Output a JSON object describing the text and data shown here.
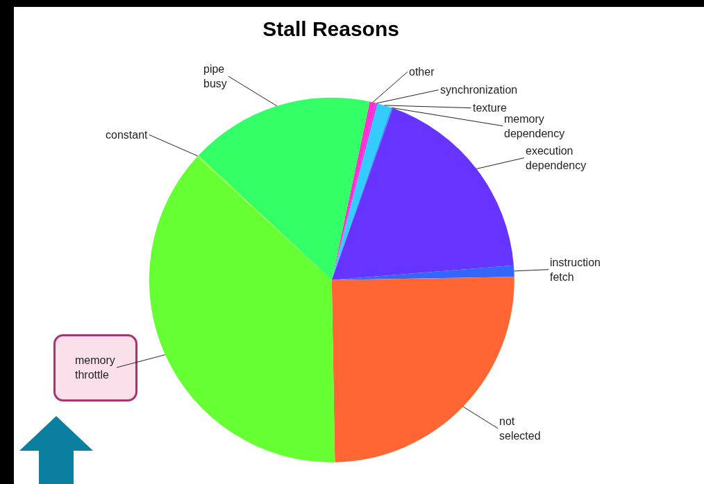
{
  "chart_data": {
    "type": "pie",
    "title": "Stall Reasons",
    "categories": [
      "other",
      "synchronization",
      "texture",
      "memory dependency",
      "execution dependency",
      "instruction fetch",
      "not selected",
      "memory throttle",
      "constant",
      "pipe busy"
    ],
    "values": [
      0.56,
      0.14,
      1.25,
      0.14,
      18.3,
      1.0,
      25.0,
      37.1,
      0.14,
      16.37
    ],
    "colors": [
      "#ff33cc",
      "#cc33ff",
      "#33ccff",
      "#3399ff",
      "#6633ff",
      "#3366ff",
      "#ff6633",
      "#66ff33",
      "#99ff33",
      "#33ff66"
    ],
    "legend": false
  }
}
